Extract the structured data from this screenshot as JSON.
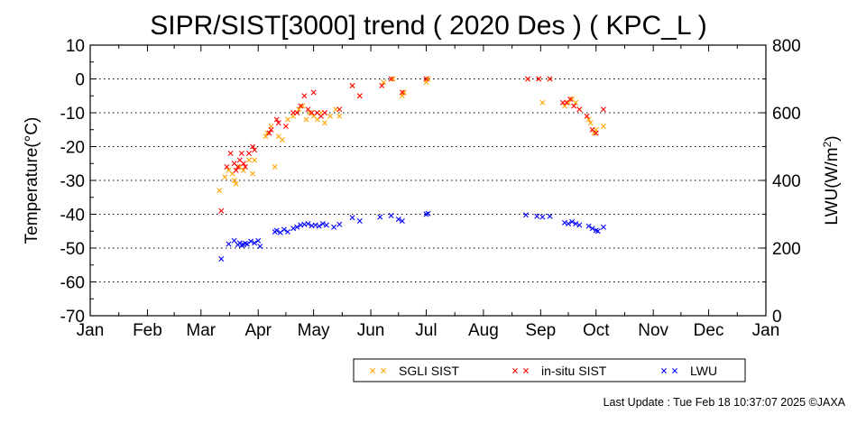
{
  "chart_data": {
    "type": "scatter",
    "title": "SIPR/SIST[3000] trend ( 2020 Des ) ( KPC_L )",
    "ylabel": "Temperature(°C)",
    "ylabel_right": "LWU(W/m²)",
    "ylabel_right_parts": {
      "base": "LWU(W/m",
      "sup": "2",
      "close": ")"
    },
    "ylim": [
      -70,
      10
    ],
    "ylim_right": [
      0,
      800
    ],
    "y_ticks": [
      "10",
      "0",
      "-10",
      "-20",
      "-30",
      "-40",
      "-50",
      "-60",
      "-70"
    ],
    "y_ticks_right": [
      "800",
      "600",
      "400",
      "200",
      "0"
    ],
    "x_ticks": [
      "Jan",
      "Feb",
      "Mar",
      "Apr",
      "May",
      "Jun",
      "Jul",
      "Aug",
      "Sep",
      "Oct",
      "Nov",
      "Dec",
      "Jan"
    ],
    "grid": "horizontal dotted every 10 °C",
    "legend_position": "bottom-right",
    "series": [
      {
        "name": "SGLI SIST",
        "color": "#ffa500",
        "axis": "left",
        "points": [
          [
            "2020-03-11",
            -33
          ],
          [
            "2020-03-14",
            -29
          ],
          [
            "2020-03-16",
            -27
          ],
          [
            "2020-03-18",
            -28
          ],
          [
            "2020-03-19",
            -30
          ],
          [
            "2020-03-20",
            -31
          ],
          [
            "2020-03-22",
            -26
          ],
          [
            "2020-03-24",
            -27
          ],
          [
            "2020-03-27",
            -24
          ],
          [
            "2020-03-29",
            -28
          ],
          [
            "2020-03-30",
            -24
          ],
          [
            "2020-04-05",
            -17
          ],
          [
            "2020-04-06",
            -16
          ],
          [
            "2020-04-08",
            -14
          ],
          [
            "2020-04-10",
            -26
          ],
          [
            "2020-04-12",
            -17
          ],
          [
            "2020-04-14",
            -18
          ],
          [
            "2020-04-17",
            -12
          ],
          [
            "2020-04-20",
            -11
          ],
          [
            "2020-04-23",
            -9
          ],
          [
            "2020-04-25",
            -8
          ],
          [
            "2020-04-27",
            -12
          ],
          [
            "2020-04-29",
            -10
          ],
          [
            "2020-05-01",
            -11
          ],
          [
            "2020-05-03",
            -12
          ],
          [
            "2020-05-05",
            -10
          ],
          [
            "2020-05-07",
            -13
          ],
          [
            "2020-05-10",
            -11
          ],
          [
            "2020-05-13",
            -9
          ],
          [
            "2020-05-15",
            -11
          ],
          [
            "2020-05-22",
            -2
          ],
          [
            "2020-05-26",
            -5
          ],
          [
            "2020-06-08",
            -1
          ],
          [
            "2020-06-13",
            0
          ],
          [
            "2020-06-18",
            -5
          ],
          [
            "2020-06-19",
            -4
          ],
          [
            "2020-07-01",
            -1
          ],
          [
            "2020-07-02",
            0
          ],
          [
            "2020-08-25",
            0
          ],
          [
            "2020-08-31",
            0
          ],
          [
            "2020-09-02",
            -7
          ],
          [
            "2020-09-06",
            0
          ],
          [
            "2020-09-14",
            -8
          ],
          [
            "2020-09-16",
            -7
          ],
          [
            "2020-09-18",
            -6
          ],
          [
            "2020-09-20",
            -7
          ],
          [
            "2020-09-22",
            -9
          ],
          [
            "2020-09-27",
            -12
          ],
          [
            "2020-09-28",
            -13
          ],
          [
            "2020-09-29",
            -15
          ],
          [
            "2020-09-30",
            -16
          ],
          [
            "2020-10-01",
            -15
          ],
          [
            "2020-10-05",
            -14
          ]
        ]
      },
      {
        "name": "in-situ SIST",
        "color": "#ff0000",
        "axis": "left",
        "points": [
          [
            "2020-03-12",
            -39
          ],
          [
            "2020-03-15",
            -26
          ],
          [
            "2020-03-17",
            -22
          ],
          [
            "2020-03-19",
            -25
          ],
          [
            "2020-03-20",
            -27
          ],
          [
            "2020-03-21",
            -26
          ],
          [
            "2020-03-22",
            -24
          ],
          [
            "2020-03-23",
            -22
          ],
          [
            "2020-03-24",
            -25
          ],
          [
            "2020-03-25",
            -26
          ],
          [
            "2020-03-27",
            -22
          ],
          [
            "2020-03-29",
            -20
          ],
          [
            "2020-03-30",
            -21
          ],
          [
            "2020-04-07",
            -16
          ],
          [
            "2020-04-08",
            -15
          ],
          [
            "2020-04-11",
            -12
          ],
          [
            "2020-04-12",
            -13
          ],
          [
            "2020-04-16",
            -14
          ],
          [
            "2020-04-20",
            -10
          ],
          [
            "2020-04-22",
            -10
          ],
          [
            "2020-04-24",
            -8
          ],
          [
            "2020-04-26",
            -5
          ],
          [
            "2020-04-28",
            -9
          ],
          [
            "2020-04-30",
            -10
          ],
          [
            "2020-05-01",
            -4
          ],
          [
            "2020-05-03",
            -10
          ],
          [
            "2020-05-05",
            -11
          ],
          [
            "2020-05-07",
            -10
          ],
          [
            "2020-05-15",
            -9
          ],
          [
            "2020-05-22",
            -2
          ],
          [
            "2020-05-26",
            -5
          ],
          [
            "2020-06-07",
            -2
          ],
          [
            "2020-06-12",
            0
          ],
          [
            "2020-06-18",
            -4
          ],
          [
            "2020-07-01",
            0
          ],
          [
            "2020-08-25",
            0
          ],
          [
            "2020-08-31",
            0
          ],
          [
            "2020-09-06",
            0
          ],
          [
            "2020-09-13",
            -7
          ],
          [
            "2020-09-15",
            -7
          ],
          [
            "2020-09-17",
            -6
          ],
          [
            "2020-09-19",
            -8
          ],
          [
            "2020-09-22",
            -9
          ],
          [
            "2020-09-26",
            -11
          ],
          [
            "2020-09-29",
            -15
          ],
          [
            "2020-10-01",
            -16
          ],
          [
            "2020-10-05",
            -9
          ]
        ]
      },
      {
        "name": "LWU",
        "color": "#0000ff",
        "axis": "right",
        "points": [
          [
            "2020-03-12",
            168
          ],
          [
            "2020-03-16",
            212
          ],
          [
            "2020-03-19",
            222
          ],
          [
            "2020-03-21",
            210
          ],
          [
            "2020-03-22",
            215
          ],
          [
            "2020-03-23",
            208
          ],
          [
            "2020-03-24",
            210
          ],
          [
            "2020-03-25",
            214
          ],
          [
            "2020-03-26",
            212
          ],
          [
            "2020-03-28",
            220
          ],
          [
            "2020-03-30",
            215
          ],
          [
            "2020-04-01",
            222
          ],
          [
            "2020-04-02",
            205
          ],
          [
            "2020-04-10",
            248
          ],
          [
            "2020-04-11",
            252
          ],
          [
            "2020-04-13",
            246
          ],
          [
            "2020-04-15",
            255
          ],
          [
            "2020-04-17",
            248
          ],
          [
            "2020-04-20",
            258
          ],
          [
            "2020-04-22",
            262
          ],
          [
            "2020-04-24",
            268
          ],
          [
            "2020-04-26",
            270
          ],
          [
            "2020-04-28",
            272
          ],
          [
            "2020-04-30",
            266
          ],
          [
            "2020-05-02",
            268
          ],
          [
            "2020-05-04",
            265
          ],
          [
            "2020-05-06",
            272
          ],
          [
            "2020-05-08",
            268
          ],
          [
            "2020-05-12",
            262
          ],
          [
            "2020-05-15",
            270
          ],
          [
            "2020-05-22",
            290
          ],
          [
            "2020-05-26",
            280
          ],
          [
            "2020-06-06",
            292
          ],
          [
            "2020-06-12",
            296
          ],
          [
            "2020-06-16",
            285
          ],
          [
            "2020-06-18",
            280
          ],
          [
            "2020-07-01",
            300
          ],
          [
            "2020-07-02",
            302
          ],
          [
            "2020-08-24",
            298
          ],
          [
            "2020-08-30",
            294
          ],
          [
            "2020-09-02",
            292
          ],
          [
            "2020-09-06",
            294
          ],
          [
            "2020-09-14",
            275
          ],
          [
            "2020-09-16",
            272
          ],
          [
            "2020-09-18",
            278
          ],
          [
            "2020-09-20",
            272
          ],
          [
            "2020-09-22",
            268
          ],
          [
            "2020-09-27",
            265
          ],
          [
            "2020-09-29",
            258
          ],
          [
            "2020-10-01",
            252
          ],
          [
            "2020-10-02",
            250
          ],
          [
            "2020-10-05",
            262
          ]
        ]
      }
    ]
  },
  "footer": {
    "last_update": "Last Update : Tue Feb 18 10:37:07 2025 ©JAXA"
  }
}
